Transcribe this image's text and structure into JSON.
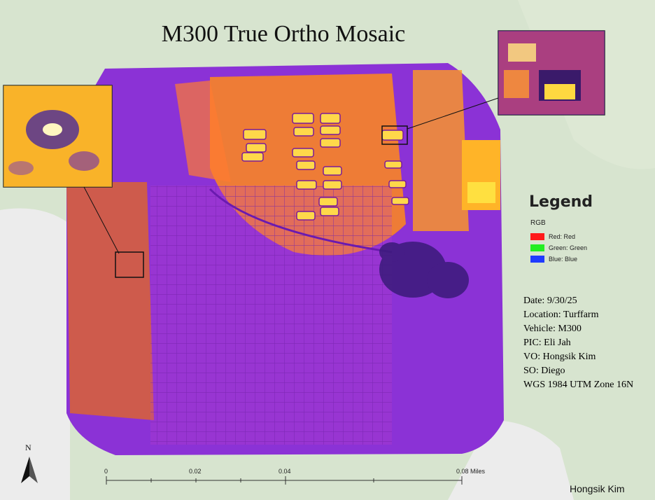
{
  "title": "M300 True Ortho Mosaic",
  "legend": {
    "heading": "Legend",
    "group": "RGB",
    "items": [
      {
        "label": "Red:  Red",
        "color": "#ff1a1a"
      },
      {
        "label": "Green: Green",
        "color": "#22ee22"
      },
      {
        "label": "Blue:  Blue",
        "color": "#1f3bff"
      }
    ]
  },
  "info": {
    "date": "Date: 9/30/25",
    "location": "Location: Turffarm",
    "vehicle": "Vehicle: M300",
    "pic": "PIC: Eli Jah",
    "vo": "VO: Hongsik Kim",
    "so": "SO: Diego",
    "crs": "WGS 1984 UTM Zone 16N"
  },
  "scale_bar": {
    "labels": [
      "0",
      "0.02",
      "0.04",
      "0.08 Miles"
    ]
  },
  "north_arrow": {
    "label": "N"
  },
  "author": "Hongsik Kim",
  "colors": {
    "basemap_green": "#d6e3cd",
    "basemap_gray": "#eeeeee",
    "thermal_purple": "#8a2be2",
    "thermal_orange": "#ff8c1a",
    "thermal_yellow": "#ffd23a"
  }
}
